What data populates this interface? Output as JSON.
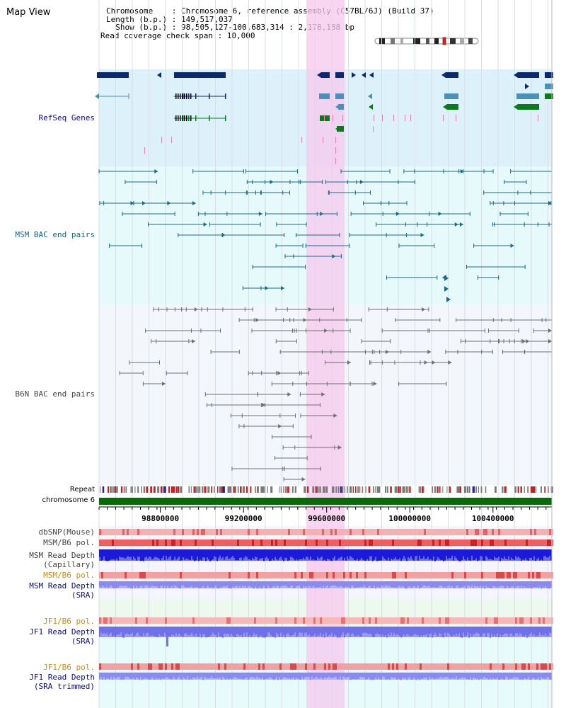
{
  "app": {
    "title": "Map View"
  },
  "info": {
    "chromosome": "Chromosome    : Chromosome 6, reference assembly (C57BL/6J) (Build 37)",
    "length": "Length (b.p.) : 149,517,037",
    "show": "  Show (b.p.) : 98,505,127-100,683,314 : 2,178,188 bp",
    "coverage": "Read coverage check span : 10,000"
  },
  "colors": {
    "refseq_bg": "#dcf1fa",
    "msm_bac_bg": "#e6fafc",
    "b6n_bac_bg": "#f3f6fb",
    "highlight": "#f8d8f0",
    "gene_dark": "#0a2a6b",
    "gene_mid": "#4a90b8",
    "gene_green": "#0a7a1a",
    "bac_line": "#1a6a8a",
    "b6n_line": "#707070",
    "chrom_bar": "#0a6a0a",
    "snp_track": "#f29a9a",
    "pol_track": "#e85050",
    "depth_blue": "#1a1ad8",
    "depth_light": "#8a8af0",
    "orange": "#e08a00",
    "navy": "#0a0a9a"
  },
  "tracks": {
    "refseq": {
      "label": "RefSeq Genes"
    },
    "msm_bac": {
      "label": "MSM BAC end pairs"
    },
    "b6n_bac": {
      "label": "B6N BAC end pairs"
    },
    "repeat": {
      "label": "Repeat"
    },
    "chromosome": {
      "label": "chromosome 6"
    },
    "dbsnp": {
      "label": "dbSNP(Mouse)"
    },
    "msm_b6_pol_1": {
      "label": "MSM/B6 pol."
    },
    "msm_depth_cap": {
      "label_1": "MSM Read Depth",
      "label_2": "(Capillary)"
    },
    "msm_b6_pol_2": {
      "label": "MSM/B6 pol."
    },
    "msm_depth_sra": {
      "label_1": "MSM Read Depth",
      "label_2": "(SRA)"
    },
    "jf1_b6_pol_1": {
      "label": "JF1/B6 pol."
    },
    "jf1_depth_sra": {
      "label_1": "JF1 Read Depth",
      "label_2": "(SRA)"
    },
    "jf1_b6_pol_2": {
      "label": "JF1/B6 pol."
    },
    "jf1_depth_trim": {
      "label_1": "JF1 Read Depth",
      "label_2": "(SRA trimmed)"
    }
  },
  "axis": {
    "ticks": [
      {
        "label": "98800000",
        "value": 98800000
      },
      {
        "label": "99200000",
        "value": 99200000
      },
      {
        "label": "99600000",
        "value": 99600000
      },
      {
        "label": "100000000",
        "value": 100000000
      },
      {
        "label": "100400000",
        "value": 100400000
      }
    ]
  }
}
